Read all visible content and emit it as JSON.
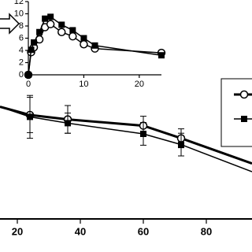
{
  "chart_data": [
    {
      "type": "line",
      "x": [
        0,
        0.5,
        1,
        2,
        3,
        4,
        6,
        8,
        10,
        12,
        24
      ],
      "xlim": [
        0,
        24
      ],
      "xticks": [
        0,
        10,
        20
      ],
      "ylim": [
        0,
        12
      ],
      "yticks": [
        0,
        2,
        4,
        6,
        8,
        10,
        12
      ],
      "series": [
        {
          "marker": "circle",
          "color": "#000000",
          "line_width": 1.5,
          "values": [
            0,
            3.7,
            4.5,
            5.8,
            7.8,
            8.3,
            7,
            6.3,
            5,
            4.3,
            3.6
          ]
        },
        {
          "marker": "square",
          "color": "#000000",
          "line_width": 1.5,
          "values": [
            0,
            4.1,
            5.3,
            7,
            9.2,
            9.5,
            8.2,
            7.3,
            6,
            4.8,
            3.2
          ]
        }
      ]
    },
    {
      "type": "line",
      "x": [
        14.5,
        24,
        36,
        60,
        72,
        94.5
      ],
      "xlim": [
        14.5,
        94.5
      ],
      "xticks": [
        20,
        40,
        60,
        80
      ],
      "ylim": [
        0,
        110
      ],
      "legend": "right",
      "series": [
        {
          "marker": "circle",
          "color": "#000000",
          "line_width": 3,
          "values": [
            89,
            82.5,
            79,
            74,
            64,
            44
          ],
          "errors": [
            null,
            14,
            11,
            7.5,
            7.5,
            null
          ]
        },
        {
          "marker": "square",
          "color": "#000000",
          "line_width": 1.5,
          "values": [
            89,
            81,
            76,
            67.5,
            59,
            37.5
          ],
          "errors": [
            null,
            17,
            8,
            9,
            9,
            null
          ]
        }
      ]
    }
  ]
}
